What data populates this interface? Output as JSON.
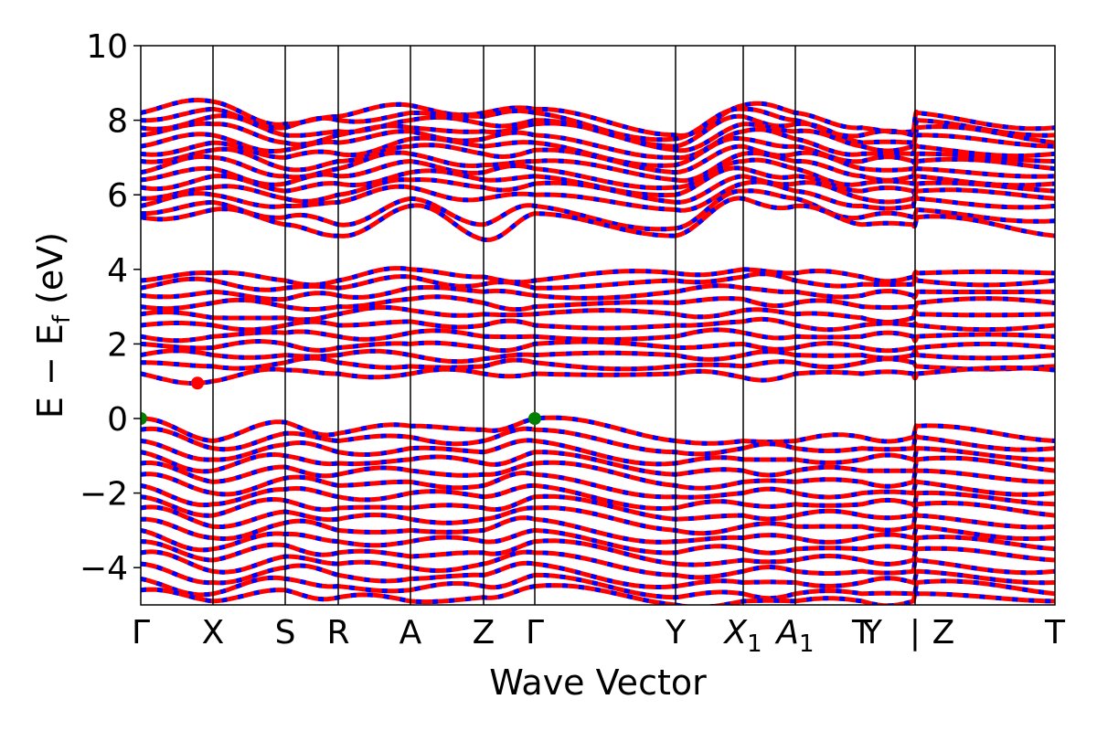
{
  "chart_data": {
    "type": "line",
    "title": "",
    "xlabel": "Wave Vector",
    "ylabel_main": "E − E",
    "ylabel_sub": "f",
    "ylabel_unit": " (eV)",
    "ylim": [
      -5,
      10
    ],
    "yticks": [
      -4,
      -2,
      0,
      2,
      4,
      6,
      8,
      10
    ],
    "ytick_labels": [
      "−4",
      "−2",
      "0",
      "2",
      "4",
      "6",
      "8",
      "10"
    ],
    "grid": false,
    "legend": "none",
    "colors": {
      "band_primary": "#ff0000",
      "band_secondary": "#0000ff",
      "vbm_marker": "#008000",
      "cbm_marker": "#ff0000",
      "path_separator": "#000000"
    },
    "kpath": [
      {
        "label": "Γ",
        "sub": "",
        "x": 0.0
      },
      {
        "label": "X",
        "sub": "",
        "x": 0.079
      },
      {
        "label": "S",
        "sub": "",
        "x": 0.158
      },
      {
        "label": "R",
        "sub": "",
        "x": 0.216
      },
      {
        "label": "A",
        "sub": "",
        "x": 0.295
      },
      {
        "label": "Z",
        "sub": "",
        "x": 0.375
      },
      {
        "label": "Γ",
        "sub": "",
        "x": 0.431
      },
      {
        "label": "Y",
        "sub": "",
        "x": 0.585
      },
      {
        "label": "X",
        "sub": "1",
        "x": 0.659
      },
      {
        "label": "A",
        "sub": "1",
        "x": 0.716
      },
      {
        "label": "T",
        "sub": "",
        "x": 0.789
      },
      {
        "label": "Y",
        "sub": "",
        "x": 0.8
      },
      {
        "label": "|",
        "sub": "",
        "x": 0.847
      },
      {
        "label": "Z",
        "sub": "",
        "x": 0.878
      },
      {
        "label": "T",
        "sub": "",
        "x": 1.0
      }
    ],
    "separators_x": [
      0.079,
      0.158,
      0.216,
      0.295,
      0.375,
      0.431,
      0.585,
      0.659,
      0.716,
      0.847
    ],
    "markers": [
      {
        "name": "VBM",
        "x": 0.0,
        "y": 0.0,
        "color": "#008000"
      },
      {
        "name": "VBM",
        "x": 0.431,
        "y": 0.0,
        "color": "#008000"
      },
      {
        "name": "CBM",
        "x": 0.062,
        "y": 0.95,
        "color": "#ff0000"
      }
    ],
    "nodes": [
      0,
      0.079,
      0.158,
      0.216,
      0.295,
      0.375,
      0.431,
      0.585,
      0.659,
      0.716,
      0.789,
      0.845,
      0.849,
      1.0
    ],
    "series": [
      {
        "values": [
          8.2,
          8.5,
          7.9,
          8.1,
          8.4,
          8.2,
          8.3,
          7.6,
          8.4,
          8.2,
          7.8,
          7.7,
          8.2,
          7.8
        ]
      },
      {
        "values": [
          8.0,
          8.3,
          7.8,
          8.0,
          8.2,
          8.1,
          8.2,
          7.5,
          8.3,
          8.0,
          7.6,
          7.6,
          8.0,
          7.6
        ]
      },
      {
        "values": [
          7.8,
          8.1,
          7.6,
          7.7,
          8.0,
          7.9,
          8.0,
          7.3,
          8.1,
          7.9,
          7.4,
          7.4,
          7.8,
          7.4
        ]
      },
      {
        "values": [
          7.6,
          7.9,
          7.4,
          7.6,
          7.8,
          7.7,
          7.9,
          7.2,
          7.9,
          7.7,
          7.3,
          7.3,
          7.6,
          7.3
        ]
      },
      {
        "values": [
          7.3,
          7.6,
          7.2,
          7.4,
          7.7,
          7.5,
          7.6,
          7.0,
          7.7,
          7.5,
          7.1,
          7.1,
          7.3,
          7.1
        ]
      },
      {
        "values": [
          7.1,
          7.4,
          7.0,
          7.1,
          7.5,
          7.3,
          7.4,
          6.8,
          7.5,
          7.3,
          6.9,
          6.9,
          7.1,
          6.9
        ]
      },
      {
        "values": [
          6.9,
          7.2,
          6.7,
          6.9,
          7.3,
          7.1,
          7.2,
          6.6,
          7.3,
          7.1,
          6.7,
          6.7,
          6.9,
          6.7
        ]
      },
      {
        "values": [
          6.6,
          7.0,
          6.5,
          6.7,
          7.1,
          6.8,
          6.9,
          6.4,
          7.1,
          6.9,
          6.5,
          6.5,
          6.7,
          6.5
        ]
      },
      {
        "values": [
          6.4,
          6.7,
          6.3,
          6.5,
          6.9,
          6.6,
          6.7,
          6.2,
          6.9,
          6.7,
          6.3,
          6.3,
          6.5,
          6.3
        ]
      },
      {
        "values": [
          6.2,
          6.5,
          6.1,
          6.3,
          6.6,
          6.4,
          6.5,
          6.0,
          6.7,
          6.5,
          6.1,
          6.1,
          6.3,
          6.1
        ]
      },
      {
        "values": [
          5.9,
          6.2,
          5.9,
          6.0,
          6.4,
          6.2,
          6.3,
          5.8,
          6.5,
          6.3,
          5.9,
          5.9,
          6.1,
          5.9
        ]
      },
      {
        "values": [
          5.7,
          6.0,
          5.7,
          5.8,
          6.2,
          5.9,
          6.0,
          5.6,
          6.3,
          6.1,
          5.7,
          5.7,
          5.9,
          5.7
        ]
      },
      {
        "values": [
          5.5,
          5.8,
          5.4,
          5.2,
          5.9,
          5.2,
          5.7,
          5.1,
          6.1,
          5.9,
          5.4,
          5.4,
          5.6,
          5.3
        ]
      },
      {
        "values": [
          5.4,
          5.6,
          5.2,
          4.9,
          5.7,
          4.8,
          5.5,
          4.9,
          5.9,
          5.7,
          5.2,
          5.2,
          5.4,
          4.9
        ]
      },
      {
        "values": [
          3.7,
          3.9,
          3.7,
          3.7,
          4.0,
          3.8,
          3.7,
          3.9,
          4.0,
          3.9,
          3.8,
          3.8,
          3.9,
          3.9
        ]
      },
      {
        "values": [
          3.5,
          3.7,
          3.5,
          3.5,
          3.8,
          3.6,
          3.5,
          3.7,
          3.8,
          3.7,
          3.6,
          3.6,
          3.7,
          3.7
        ]
      },
      {
        "values": [
          3.3,
          3.4,
          3.2,
          3.3,
          3.5,
          3.4,
          3.3,
          3.4,
          3.5,
          3.4,
          3.3,
          3.3,
          3.4,
          3.4
        ]
      },
      {
        "values": [
          3.0,
          3.1,
          3.0,
          3.0,
          3.2,
          3.1,
          3.0,
          3.1,
          3.2,
          3.1,
          3.0,
          3.0,
          3.1,
          3.1
        ]
      },
      {
        "values": [
          2.8,
          2.7,
          2.7,
          2.8,
          2.9,
          2.8,
          2.8,
          2.8,
          2.9,
          2.8,
          2.7,
          2.7,
          2.8,
          2.8
        ]
      },
      {
        "values": [
          2.5,
          2.5,
          2.5,
          2.5,
          2.6,
          2.5,
          2.5,
          2.5,
          2.6,
          2.5,
          2.5,
          2.5,
          2.5,
          2.5
        ]
      },
      {
        "values": [
          2.2,
          2.2,
          2.3,
          2.2,
          2.3,
          2.2,
          2.2,
          2.2,
          2.3,
          2.2,
          2.2,
          2.2,
          2.2,
          2.2
        ]
      },
      {
        "values": [
          2.0,
          1.9,
          2.0,
          1.9,
          2.0,
          1.9,
          2.0,
          1.9,
          2.0,
          1.9,
          1.9,
          1.9,
          1.9,
          1.9
        ]
      },
      {
        "values": [
          1.7,
          1.7,
          1.7,
          1.7,
          1.7,
          1.6,
          1.7,
          1.7,
          1.7,
          1.7,
          1.7,
          1.7,
          1.7,
          1.7
        ]
      },
      {
        "values": [
          1.5,
          1.4,
          1.5,
          1.5,
          1.4,
          1.4,
          1.5,
          1.4,
          1.4,
          1.5,
          1.5,
          1.5,
          1.4,
          1.4
        ]
      },
      {
        "values": [
          1.2,
          1.0,
          1.3,
          1.2,
          1.2,
          1.2,
          1.2,
          1.2,
          1.1,
          1.2,
          1.2,
          1.2,
          1.2,
          1.3
        ]
      },
      {
        "values": [
          0.0,
          -0.6,
          -0.1,
          -0.4,
          -0.2,
          -0.3,
          0.0,
          -0.6,
          -0.6,
          -0.6,
          -0.5,
          -0.5,
          -0.2,
          -0.6
        ]
      },
      {
        "values": [
          -0.3,
          -0.8,
          -0.4,
          -0.6,
          -0.5,
          -0.6,
          -0.3,
          -0.9,
          -0.8,
          -0.8,
          -0.8,
          -0.8,
          -0.5,
          -0.8
        ]
      },
      {
        "values": [
          -0.6,
          -1.1,
          -0.7,
          -0.9,
          -0.8,
          -0.9,
          -0.6,
          -1.2,
          -1.1,
          -1.1,
          -1.1,
          -1.1,
          -0.8,
          -1.1
        ]
      },
      {
        "values": [
          -0.9,
          -1.4,
          -1.0,
          -1.2,
          -1.1,
          -1.2,
          -0.9,
          -1.5,
          -1.4,
          -1.4,
          -1.4,
          -1.4,
          -1.1,
          -1.4
        ]
      },
      {
        "values": [
          -1.2,
          -1.7,
          -1.3,
          -1.5,
          -1.4,
          -1.5,
          -1.2,
          -1.8,
          -1.7,
          -1.7,
          -1.7,
          -1.7,
          -1.4,
          -1.7
        ]
      },
      {
        "values": [
          -1.5,
          -2.0,
          -1.6,
          -1.8,
          -1.7,
          -1.8,
          -1.5,
          -2.1,
          -2.0,
          -2.0,
          -2.0,
          -2.0,
          -1.7,
          -2.0
        ]
      },
      {
        "values": [
          -1.8,
          -2.3,
          -1.9,
          -2.1,
          -2.0,
          -2.1,
          -1.8,
          -2.4,
          -2.3,
          -2.3,
          -2.3,
          -2.3,
          -2.0,
          -2.3
        ]
      },
      {
        "values": [
          -2.1,
          -2.6,
          -2.2,
          -2.4,
          -2.4,
          -2.4,
          -2.1,
          -2.7,
          -2.6,
          -2.6,
          -2.6,
          -2.6,
          -2.3,
          -2.6
        ]
      },
      {
        "values": [
          -2.4,
          -2.9,
          -2.5,
          -2.7,
          -2.7,
          -2.7,
          -2.4,
          -3.0,
          -2.9,
          -2.9,
          -2.9,
          -2.9,
          -2.6,
          -2.9
        ]
      },
      {
        "values": [
          -2.7,
          -3.2,
          -2.8,
          -3.0,
          -3.0,
          -3.0,
          -2.7,
          -3.3,
          -3.2,
          -3.2,
          -3.2,
          -3.2,
          -2.9,
          -3.2
        ]
      },
      {
        "values": [
          -3.0,
          -3.5,
          -3.1,
          -3.3,
          -3.3,
          -3.3,
          -3.0,
          -3.6,
          -3.5,
          -3.5,
          -3.5,
          -3.5,
          -3.2,
          -3.5
        ]
      },
      {
        "values": [
          -3.3,
          -3.8,
          -3.4,
          -3.6,
          -3.7,
          -3.6,
          -3.3,
          -3.9,
          -3.8,
          -3.8,
          -3.8,
          -3.8,
          -3.5,
          -3.8
        ]
      },
      {
        "values": [
          -3.6,
          -4.1,
          -3.7,
          -3.9,
          -4.0,
          -3.9,
          -3.6,
          -4.2,
          -4.1,
          -4.1,
          -4.1,
          -4.1,
          -3.8,
          -4.1
        ]
      },
      {
        "values": [
          -3.9,
          -4.4,
          -4.0,
          -4.2,
          -4.3,
          -4.2,
          -3.9,
          -4.5,
          -4.4,
          -4.4,
          -4.4,
          -4.4,
          -4.1,
          -4.4
        ]
      },
      {
        "values": [
          -4.3,
          -4.7,
          -4.3,
          -4.5,
          -4.6,
          -4.5,
          -4.2,
          -4.8,
          -4.7,
          -4.7,
          -4.7,
          -4.7,
          -4.4,
          -4.7
        ]
      },
      {
        "values": [
          -4.6,
          -4.9,
          -4.6,
          -4.8,
          -4.9,
          -4.8,
          -4.5,
          -5.0,
          -4.9,
          -4.9,
          -4.9,
          -4.9,
          -4.7,
          -4.9
        ]
      }
    ]
  }
}
